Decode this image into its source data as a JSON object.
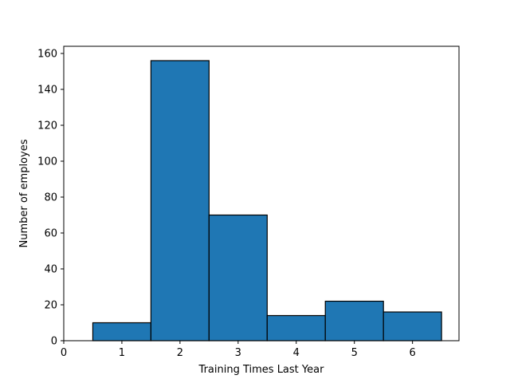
{
  "chart_data": {
    "type": "bar",
    "title": "",
    "xlabel": "Training Times Last Year",
    "ylabel": "Number of employes",
    "bins": [
      {
        "start": 0.5,
        "end": 1.5,
        "value": 10
      },
      {
        "start": 1.5,
        "end": 2.5,
        "value": 156
      },
      {
        "start": 2.5,
        "end": 3.5,
        "value": 70
      },
      {
        "start": 3.5,
        "end": 4.5,
        "value": 14
      },
      {
        "start": 4.5,
        "end": 5.5,
        "value": 22
      },
      {
        "start": 5.5,
        "end": 6.5,
        "value": 16
      }
    ],
    "xlim": [
      0,
      6.8
    ],
    "ylim": [
      0,
      164
    ],
    "xticks": [
      0,
      1,
      2,
      3,
      4,
      5,
      6
    ],
    "yticks": [
      0,
      20,
      40,
      60,
      80,
      100,
      120,
      140,
      160
    ],
    "bar_color": "#1f77b4",
    "edge_color": "#000000",
    "grid": false
  }
}
